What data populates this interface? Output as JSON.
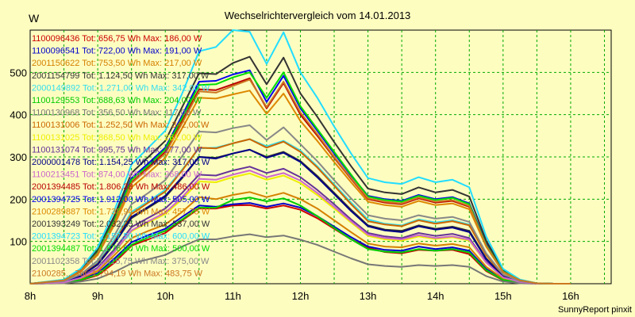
{
  "chart_data": {
    "type": "line",
    "title": "Wechselrichtervergleich vom 14.01.2013",
    "ylabel": "W",
    "footer": "SunnyReport pinxit",
    "ylim": [
      0,
      600
    ],
    "xlim": [
      8,
      16.6
    ],
    "y_ticks": [
      100,
      200,
      300,
      400,
      500
    ],
    "x_ticks": [
      {
        "v": 8,
        "label": "8h"
      },
      {
        "v": 9,
        "label": "9h"
      },
      {
        "v": 10,
        "label": "10h"
      },
      {
        "v": 11,
        "label": "11h"
      },
      {
        "v": 12,
        "label": "12h"
      },
      {
        "v": 13,
        "label": "13h"
      },
      {
        "v": 14,
        "label": "14h"
      },
      {
        "v": 15,
        "label": "15h"
      },
      {
        "v": 16,
        "label": "16h"
      }
    ],
    "grid": true,
    "legend_position": "top-left",
    "x": [
      8.0,
      8.5,
      8.75,
      9.0,
      9.25,
      9.5,
      9.75,
      10.0,
      10.25,
      10.5,
      10.75,
      11.0,
      11.25,
      11.5,
      11.75,
      12.0,
      12.25,
      12.5,
      12.75,
      13.0,
      13.25,
      13.5,
      13.75,
      14.0,
      14.25,
      14.5,
      14.75,
      15.0,
      15.25,
      15.5,
      15.75,
      16.0
    ],
    "series": [
      {
        "name": "1100096436 Tot: 656,75 Wh Max: 186,00 W",
        "color": "#cc0000",
        "values": [
          0,
          2,
          8,
          20,
          50,
          90,
          105,
          120,
          150,
          178,
          178,
          185,
          186,
          178,
          185,
          175,
          155,
          130,
          105,
          85,
          75,
          72,
          80,
          78,
          80,
          70,
          30,
          8,
          2,
          0,
          0,
          0
        ]
      },
      {
        "name": "1100096541 Tot: 722,00 Wh Max: 191,00 W",
        "color": "#0000cc",
        "values": [
          0,
          2,
          10,
          25,
          60,
          98,
          115,
          130,
          158,
          185,
          182,
          188,
          191,
          182,
          190,
          180,
          160,
          135,
          110,
          88,
          80,
          78,
          88,
          82,
          86,
          78,
          35,
          10,
          3,
          0,
          0,
          0
        ]
      },
      {
        "name": "2001150622 Tot: 753,50 Wh Max: 217,00 W",
        "color": "#d58000",
        "values": [
          0,
          3,
          12,
          30,
          68,
          108,
          125,
          140,
          170,
          205,
          200,
          210,
          217,
          205,
          215,
          200,
          178,
          150,
          122,
          95,
          88,
          86,
          95,
          90,
          94,
          86,
          40,
          12,
          3,
          0,
          0,
          0
        ]
      },
      {
        "name": "2001154799 Tot: 1.124,50 Wh Max: 317,00 W",
        "color": "#333333",
        "values": [
          0,
          4,
          18,
          45,
          95,
          155,
          180,
          205,
          250,
          300,
          298,
          308,
          317,
          300,
          312,
          290,
          255,
          215,
          175,
          138,
          128,
          125,
          138,
          130,
          135,
          125,
          60,
          18,
          5,
          0,
          0,
          0
        ]
      },
      {
        "name": "2000149892 Tot: 1.271,00 Wh Max: 342,00 W",
        "color": "#33ddee",
        "values": [
          0,
          5,
          20,
          50,
          105,
          170,
          195,
          222,
          270,
          320,
          322,
          332,
          342,
          325,
          338,
          315,
          278,
          235,
          192,
          152,
          142,
          138,
          152,
          145,
          150,
          140,
          70,
          22,
          6,
          1,
          0,
          0
        ]
      },
      {
        "name": "1100129553 Tot: 688,63 Wh Max: 204,00 W",
        "color": "#00cc00",
        "values": [
          0,
          2,
          9,
          22,
          55,
          92,
          110,
          125,
          152,
          180,
          180,
          198,
          204,
          195,
          202,
          185,
          160,
          132,
          105,
          82,
          76,
          74,
          82,
          78,
          82,
          74,
          32,
          9,
          2,
          0,
          0,
          0
        ]
      },
      {
        "name": "1100130968 Tot: 356,50 Wh Max: 117,00 W",
        "color": "#777777",
        "values": [
          0,
          1,
          5,
          12,
          28,
          48,
          58,
          68,
          88,
          105,
          105,
          112,
          117,
          110,
          114,
          104,
          92,
          76,
          60,
          46,
          42,
          40,
          44,
          42,
          44,
          40,
          18,
          5,
          1,
          0,
          0,
          0
        ]
      },
      {
        "name": "1100131006 Tot: 1.252,50 Wh Max: 342,00 W",
        "color": "#cc6600",
        "values": [
          0,
          5,
          20,
          48,
          100,
          165,
          192,
          218,
          268,
          322,
          320,
          332,
          342,
          322,
          336,
          312,
          275,
          232,
          188,
          148,
          140,
          136,
          150,
          142,
          148,
          138,
          68,
          20,
          6,
          1,
          0,
          0
        ]
      },
      {
        "name": "1100131025 Tot: 868,50 Wh Max: 261,00 W",
        "color": "#eeee00",
        "values": [
          0,
          3,
          14,
          34,
          75,
          124,
          145,
          165,
          200,
          242,
          240,
          252,
          261,
          246,
          256,
          238,
          210,
          178,
          145,
          113,
          105,
          102,
          112,
          106,
          110,
          102,
          50,
          15,
          4,
          0,
          0,
          0
        ]
      },
      {
        "name": "1100131074 Tot: 995,75 Wh Max: 277,00 W",
        "color": "#663399",
        "values": [
          0,
          4,
          15,
          38,
          82,
          134,
          156,
          178,
          215,
          258,
          256,
          268,
          277,
          262,
          272,
          252,
          222,
          188,
          152,
          120,
          112,
          108,
          120,
          113,
          118,
          108,
          52,
          16,
          4,
          0,
          0,
          0
        ]
      },
      {
        "name": "2000001478 Tot: 1.154,25 Wh Max: 317,00 W",
        "color": "#000088",
        "values": [
          0,
          4,
          18,
          46,
          97,
          158,
          182,
          208,
          252,
          300,
          296,
          308,
          317,
          298,
          310,
          288,
          252,
          212,
          172,
          136,
          126,
          122,
          136,
          128,
          133,
          122,
          58,
          17,
          5,
          0,
          0,
          0
        ]
      },
      {
        "name": "1100213451 Tot: 874,00 Wh Max: 268,00 W",
        "color": "#cc66cc",
        "values": [
          0,
          3,
          14,
          35,
          76,
          126,
          148,
          168,
          205,
          248,
          246,
          258,
          268,
          252,
          262,
          244,
          215,
          182,
          148,
          116,
          108,
          105,
          115,
          108,
          112,
          104,
          50,
          15,
          4,
          0,
          0,
          0
        ]
      },
      {
        "name": "2001394485 Tot: 1.806,38 Wh Max: 486,00 W",
        "color": "#bb0000",
        "values": [
          0,
          8,
          30,
          72,
          148,
          240,
          275,
          312,
          385,
          460,
          458,
          472,
          486,
          415,
          475,
          400,
          350,
          298,
          248,
          200,
          192,
          188,
          202,
          192,
          196,
          182,
          90,
          28,
          8,
          1,
          0,
          0
        ]
      },
      {
        "name": "2001394725 Tot: 1.912,00 Wh Max: 505,00 W",
        "color": "#0000ee",
        "values": [
          0,
          8,
          32,
          76,
          155,
          250,
          285,
          322,
          398,
          478,
          480,
          495,
          505,
          430,
          492,
          415,
          362,
          308,
          256,
          208,
          200,
          196,
          210,
          200,
          205,
          190,
          95,
          30,
          8,
          1,
          0,
          0
        ]
      },
      {
        "name": "2100289887 Tot: 1.738,94 Wh Max: 457,75 W",
        "color": "#dd8800",
        "values": [
          0,
          7,
          28,
          68,
          140,
          228,
          262,
          298,
          368,
          440,
          438,
          448,
          457,
          402,
          450,
          385,
          338,
          288,
          240,
          194,
          186,
          182,
          196,
          186,
          190,
          176,
          88,
          27,
          7,
          1,
          0,
          0
        ]
      },
      {
        "name": "2001393249 Tot: 2.032,25 Wh Max: 537,00 W",
        "color": "#333333",
        "values": [
          0,
          9,
          34,
          80,
          162,
          262,
          300,
          338,
          418,
          498,
          496,
          522,
          537,
          472,
          535,
          450,
          395,
          335,
          278,
          225,
          216,
          212,
          228,
          216,
          222,
          206,
          102,
          32,
          9,
          1,
          0,
          0
        ]
      },
      {
        "name": "2001394723 Tot: 2.157,50 Wh Max: 600,00 W",
        "color": "#22ddff",
        "values": [
          0,
          10,
          36,
          86,
          175,
          282,
          322,
          362,
          450,
          550,
          560,
          600,
          596,
          520,
          595,
          500,
          440,
          372,
          308,
          250,
          240,
          236,
          252,
          240,
          246,
          228,
          112,
          35,
          10,
          1,
          0,
          0
        ]
      },
      {
        "name": "2001394487 Tot: 1.876,00 Wh Max: 500,00 W",
        "color": "#00dd00",
        "values": [
          0,
          8,
          30,
          74,
          152,
          246,
          280,
          318,
          392,
          470,
          472,
          488,
          500,
          440,
          500,
          420,
          366,
          312,
          258,
          206,
          198,
          194,
          208,
          198,
          203,
          188,
          92,
          29,
          8,
          1,
          0,
          0
        ]
      },
      {
        "name": "2001102358 Tot: 1.415,75 Wh Max: 375,00 W",
        "color": "#888888",
        "values": [
          0,
          6,
          22,
          55,
          115,
          188,
          215,
          245,
          302,
          360,
          358,
          368,
          375,
          340,
          370,
          330,
          290,
          245,
          202,
          162,
          154,
          150,
          162,
          154,
          158,
          146,
          72,
          22,
          6,
          1,
          0,
          0
        ]
      },
      {
        "name": "2100285... Tot: 1.?94,19 Wh Max: 483,75 W",
        "color": "#cc7722",
        "values": [
          0,
          8,
          30,
          72,
          146,
          238,
          272,
          308,
          380,
          455,
          452,
          468,
          483,
          418,
          478,
          405,
          354,
          300,
          250,
          202,
          194,
          190,
          204,
          194,
          198,
          184,
          90,
          28,
          8,
          1,
          0,
          0
        ]
      }
    ]
  }
}
